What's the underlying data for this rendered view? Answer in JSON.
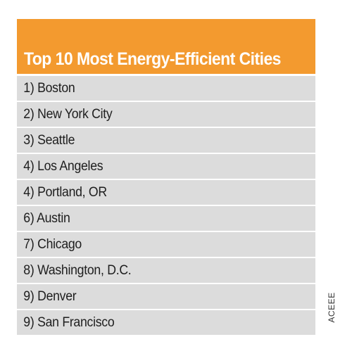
{
  "chart_data": {
    "type": "table",
    "title": "Top 10 Most Energy-Efficient Cities",
    "rows": [
      "1) Boston",
      "2) New York City",
      "3) Seattle",
      "4) Los Angeles",
      "4) Portland, OR",
      "6) Austin",
      "7) Chicago",
      "8) Washington, D.C.",
      "9) Denver",
      "9) San Francisco"
    ],
    "source": "ACEEE"
  },
  "colors": {
    "header_background": "#f39a2f",
    "row_background": "#dcdcdc",
    "title_text": "#ffffff",
    "row_text": "#1e1e1e"
  }
}
